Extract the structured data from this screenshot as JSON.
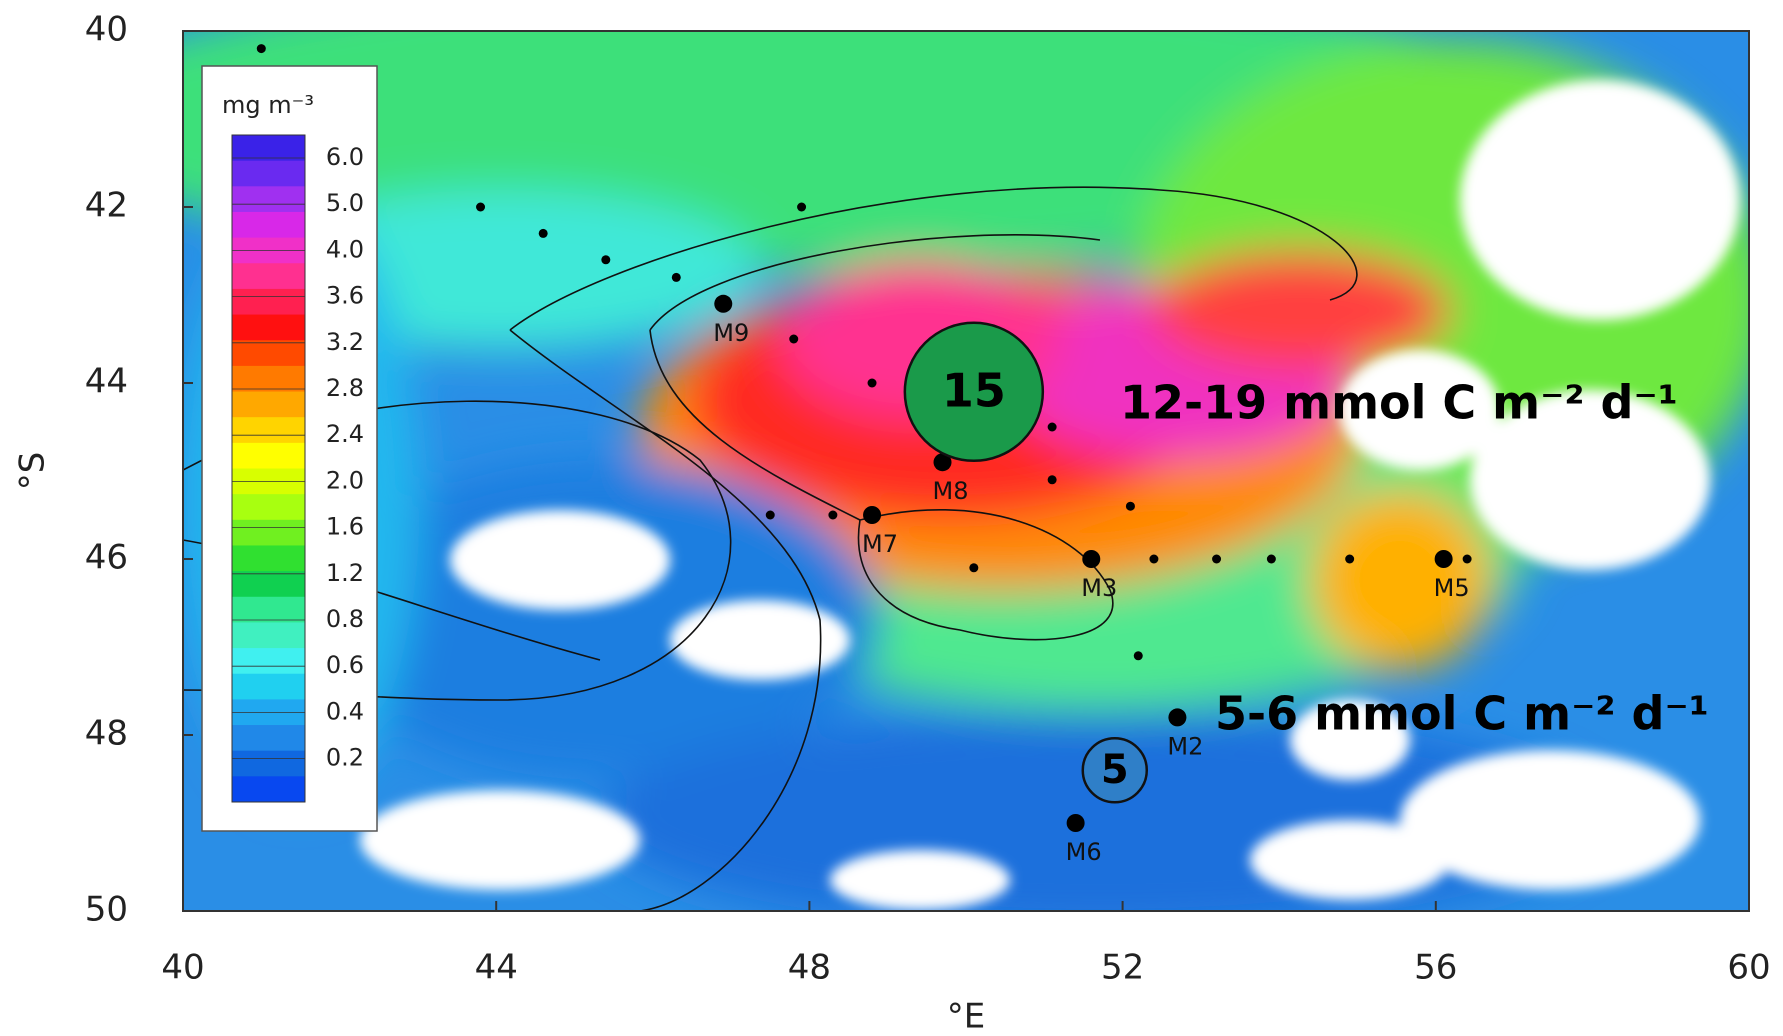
{
  "map": {
    "xlim": [
      40,
      60
    ],
    "ylim": [
      40,
      50
    ],
    "xticks": [
      40,
      44,
      48,
      52,
      56,
      60
    ],
    "yticks": [
      40,
      42,
      44,
      46,
      48,
      50
    ],
    "x_label": "°E",
    "y_label": "°S",
    "colorbar": {
      "unit": "mg m⁻³",
      "ticks": [
        "6.0",
        "5.0",
        "4.0",
        "3.6",
        "3.2",
        "2.8",
        "2.4",
        "2.0",
        "1.6",
        "1.2",
        "0.8",
        "0.6",
        "0.4",
        "0.2"
      ],
      "colors": [
        "#3a22e8",
        "#6a2af0",
        "#a030f0",
        "#d828e8",
        "#f030c8",
        "#ff3090",
        "#ff2050",
        "#ff1010",
        "#ff4a00",
        "#ff7a00",
        "#ffa800",
        "#ffd400",
        "#ffff00",
        "#d8ff00",
        "#a8ff10",
        "#70f020",
        "#30e030",
        "#10d050",
        "#30e890",
        "#40f0c0",
        "#40f0f0",
        "#20d0f0",
        "#20a8f0",
        "#2088e8",
        "#1068e0",
        "#0848f0"
      ]
    },
    "stations": [
      {
        "name": "M9",
        "lon": 46.9,
        "lat": 43.1
      },
      {
        "name": "M8",
        "lon": 49.7,
        "lat": 44.9
      },
      {
        "name": "M7",
        "lon": 48.8,
        "lat": 45.5
      },
      {
        "name": "M3",
        "lon": 51.6,
        "lat": 46.0
      },
      {
        "name": "M5",
        "lon": 56.1,
        "lat": 46.0
      },
      {
        "name": "M2",
        "lon": 52.7,
        "lat": 47.8
      },
      {
        "name": "M6",
        "lon": 51.4,
        "lat": 49.0
      }
    ],
    "small_stations": [
      [
        41.0,
        40.2
      ],
      [
        43.8,
        42.0
      ],
      [
        44.6,
        42.3
      ],
      [
        45.4,
        42.6
      ],
      [
        46.3,
        42.8
      ],
      [
        47.9,
        42.0
      ],
      [
        47.8,
        43.5
      ],
      [
        48.8,
        44.0
      ],
      [
        51.1,
        44.5
      ],
      [
        51.1,
        45.1
      ],
      [
        52.1,
        45.4
      ],
      [
        47.5,
        45.5
      ],
      [
        48.3,
        45.5
      ],
      [
        50.1,
        46.1
      ],
      [
        52.4,
        46.0
      ],
      [
        53.2,
        46.0
      ],
      [
        53.9,
        46.0
      ],
      [
        54.9,
        46.0
      ],
      [
        56.4,
        46.0
      ],
      [
        52.2,
        47.1
      ]
    ],
    "annotations": [
      {
        "value": 15,
        "text": "12-19 mmol C m⁻² d⁻¹",
        "lon": 50.1,
        "lat": 44.1
      },
      {
        "value": 5,
        "text": "5-6 mmol C m⁻² d⁻¹",
        "lon": 51.9,
        "lat": 48.4
      }
    ]
  }
}
